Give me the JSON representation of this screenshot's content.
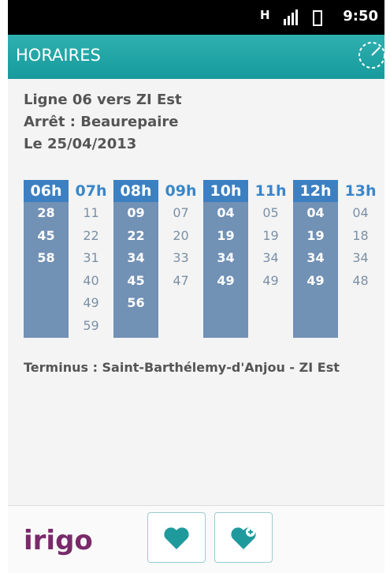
{
  "status": {
    "network": "H",
    "time": "9:50"
  },
  "header": {
    "title": "HORAIRES"
  },
  "info": {
    "line": "Ligne 06 vers ZI Est",
    "stop": "Arrêt : Beaurepaire",
    "date": "Le 25/04/2013"
  },
  "timetable": {
    "columns": [
      {
        "hour": "06h",
        "minutes": [
          "28",
          "45",
          "58"
        ]
      },
      {
        "hour": "07h",
        "minutes": [
          "11",
          "22",
          "31",
          "40",
          "49",
          "59"
        ]
      },
      {
        "hour": "08h",
        "minutes": [
          "09",
          "22",
          "34",
          "45",
          "56"
        ]
      },
      {
        "hour": "09h",
        "minutes": [
          "07",
          "20",
          "33",
          "47"
        ]
      },
      {
        "hour": "10h",
        "minutes": [
          "04",
          "19",
          "34",
          "49"
        ]
      },
      {
        "hour": "11h",
        "minutes": [
          "05",
          "19",
          "34",
          "49"
        ]
      },
      {
        "hour": "12h",
        "minutes": [
          "04",
          "19",
          "34",
          "49"
        ]
      },
      {
        "hour": "13h",
        "minutes": [
          "04",
          "18",
          "34",
          "48"
        ]
      }
    ]
  },
  "terminus": "Terminus : Saint-Barthélemy-d'Anjou - ZI Est",
  "footer": {
    "logo": "irigo"
  }
}
